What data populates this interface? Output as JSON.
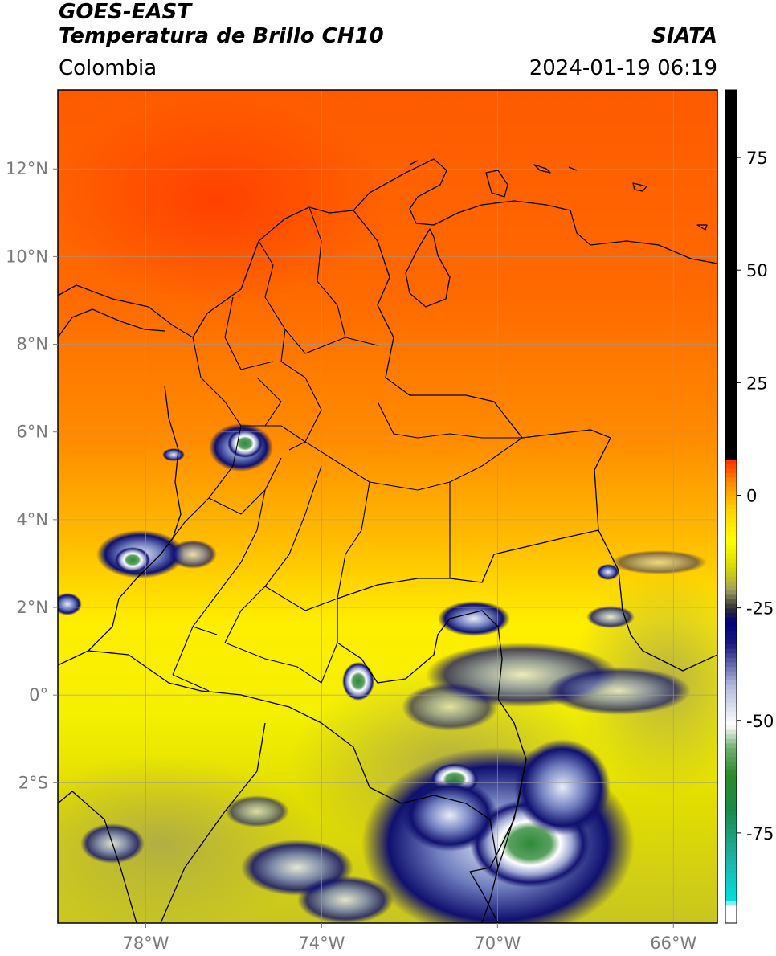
{
  "header": {
    "satellite": "GOES-EAST",
    "product": "Temperatura de Brillo CH10",
    "region": "Colombia",
    "brand": "SIATA",
    "datetime": "2024-01-19 06:19"
  },
  "map": {
    "lon_range": [
      -80,
      -65
    ],
    "lat_range": [
      -5.2,
      13.8
    ],
    "grid": true,
    "lat_ticks": [
      {
        "value": 12,
        "label": "12°N"
      },
      {
        "value": 10,
        "label": "10°N"
      },
      {
        "value": 8,
        "label": "8°N"
      },
      {
        "value": 6,
        "label": "6°N"
      },
      {
        "value": 4,
        "label": "4°N"
      },
      {
        "value": 2,
        "label": "2°N"
      },
      {
        "value": 0,
        "label": "0°"
      },
      {
        "value": -2,
        "label": "2°S"
      }
    ],
    "lon_ticks": [
      {
        "value": -78,
        "label": "78°W"
      },
      {
        "value": -74,
        "label": "74°W"
      },
      {
        "value": -70,
        "label": "70°W"
      },
      {
        "value": -66,
        "label": "66°W"
      }
    ]
  },
  "colorbar": {
    "range": [
      -95,
      90
    ],
    "ticks": [
      {
        "value": 75,
        "label": "75"
      },
      {
        "value": 50,
        "label": "50"
      },
      {
        "value": 25,
        "label": "25"
      },
      {
        "value": 0,
        "label": "0"
      },
      {
        "value": -25,
        "label": "-25"
      },
      {
        "value": -50,
        "label": "-50"
      },
      {
        "value": -75,
        "label": "-75"
      }
    ],
    "stops": [
      {
        "value": -95,
        "color": "#ffffff"
      },
      {
        "value": -91,
        "color": "#ffffff"
      },
      {
        "value": -90,
        "color": "#00e0e0"
      },
      {
        "value": -80,
        "color": "#20b0a0"
      },
      {
        "value": -70,
        "color": "#1a8a4a"
      },
      {
        "value": -62,
        "color": "#2a8a2a"
      },
      {
        "value": -56,
        "color": "#70b070"
      },
      {
        "value": -51,
        "color": "#ffffff"
      },
      {
        "value": -42,
        "color": "#aeb8d8"
      },
      {
        "value": -33,
        "color": "#1a1a80"
      },
      {
        "value": -28,
        "color": "#00007a"
      },
      {
        "value": -25,
        "color": "#303030"
      },
      {
        "value": -21,
        "color": "#a0a060"
      },
      {
        "value": -16,
        "color": "#d8d800"
      },
      {
        "value": -10,
        "color": "#ffff00"
      },
      {
        "value": -3,
        "color": "#ffd000"
      },
      {
        "value": 3,
        "color": "#ff8a00"
      },
      {
        "value": 8,
        "color": "#ff2a00"
      },
      {
        "value": 8.01,
        "color": "#000000"
      },
      {
        "value": 90,
        "color": "#000000"
      }
    ]
  }
}
